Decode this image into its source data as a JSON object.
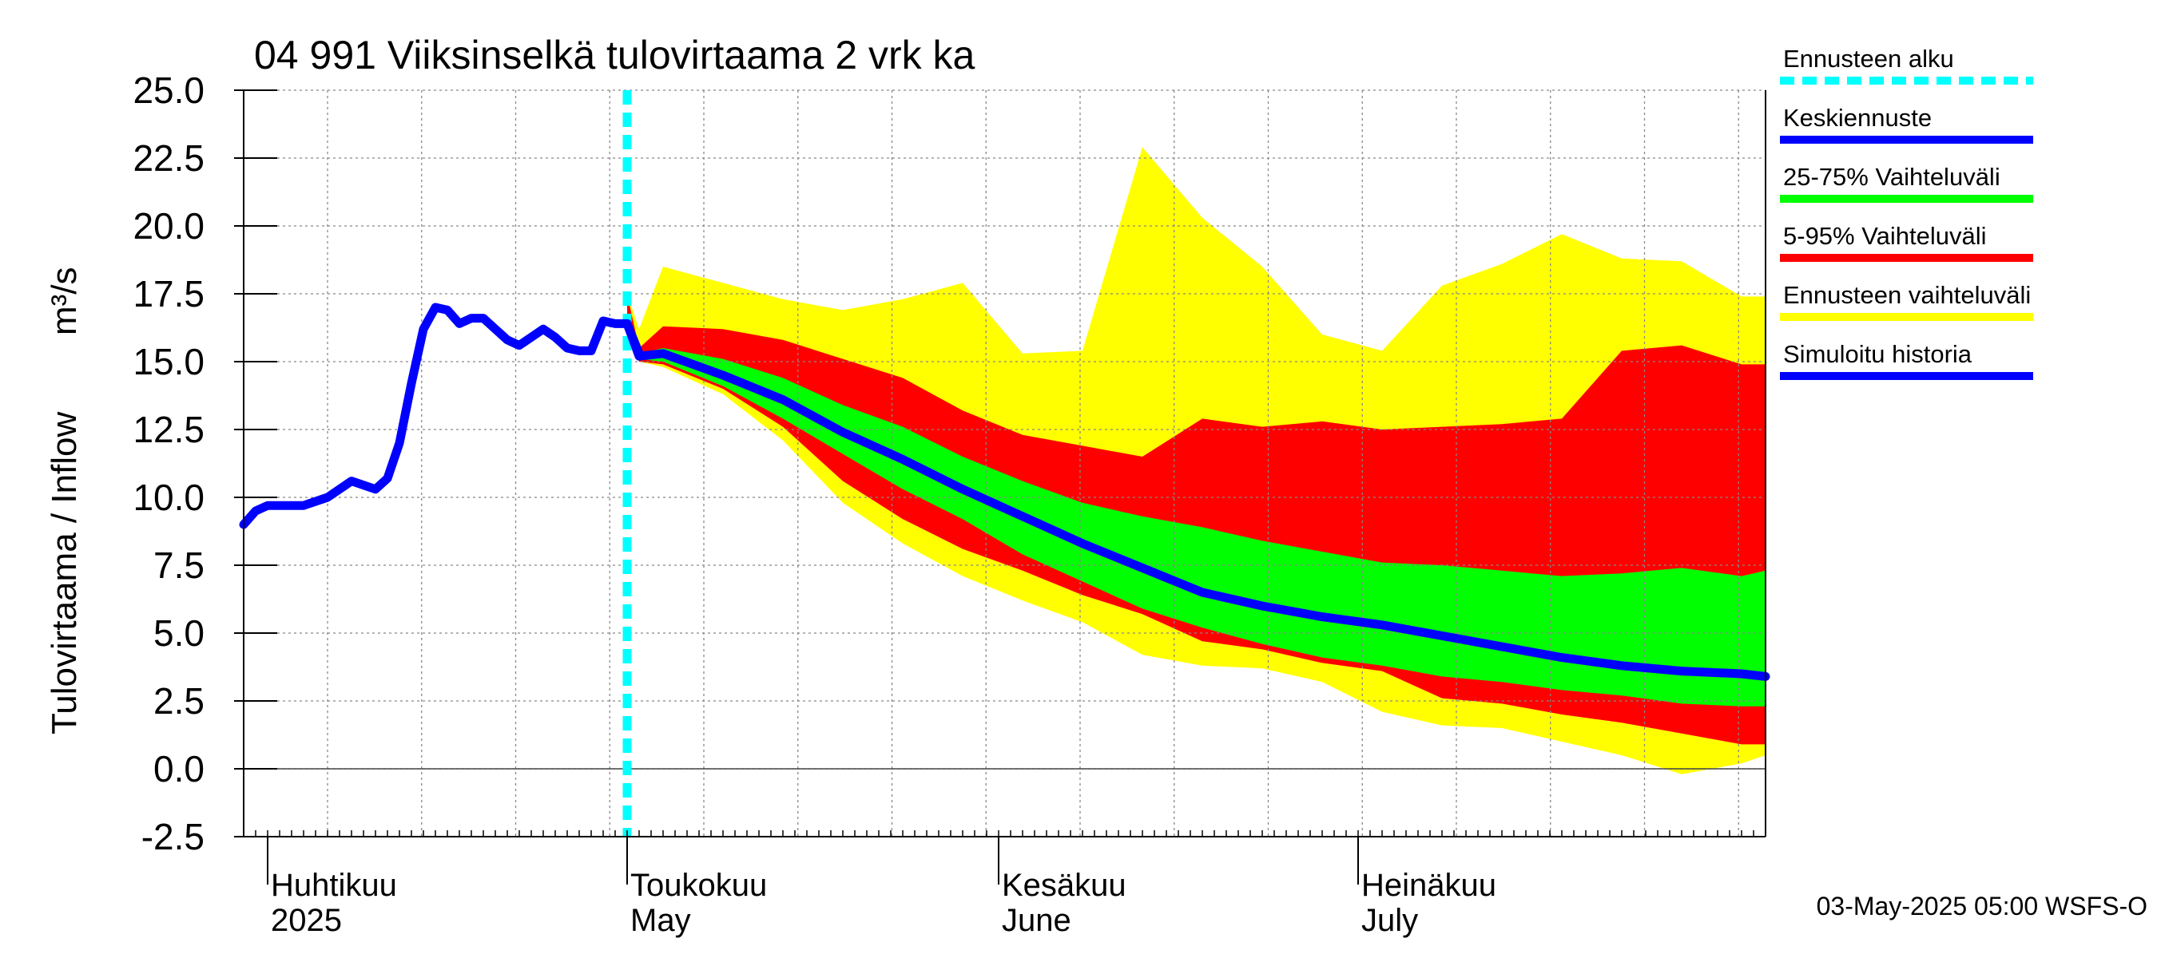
{
  "chart_data": {
    "type": "area",
    "title": "04 991 Viiksinselkä tulovirtaama 2 vrk ka",
    "ylabel_fi": "Tulovirtaama / Inflow",
    "ylabel_unit": "m³/s",
    "ylim": [
      -2.5,
      25.0
    ],
    "yticks": [
      "-2.5",
      "0.0",
      "2.5",
      "5.0",
      "7.5",
      "10.0",
      "12.5",
      "15.0",
      "17.5",
      "20.0",
      "22.5",
      "25.0"
    ],
    "x_unit": "days since 2025-03-27",
    "xlim": [
      0,
      127
    ],
    "forecast_start_day": 32,
    "months": [
      {
        "day": 2,
        "fi": "Huhtikuu",
        "en": "2025"
      },
      {
        "day": 32,
        "fi": "Toukokuu",
        "en": "May"
      },
      {
        "day": 63,
        "fi": "Kesäkuu",
        "en": "June"
      },
      {
        "day": 93,
        "fi": "Heinäkuu",
        "en": "July"
      }
    ],
    "footer": "03-May-2025 05:00 WSFS-O",
    "legend": [
      {
        "label": "Ennusteen alku",
        "color": "#00ffff",
        "dashed": true
      },
      {
        "label": "Keskiennuste",
        "color": "#0000ff",
        "dashed": false
      },
      {
        "label": "25-75% Vaihteluväli",
        "color": "#00ff00",
        "dashed": false
      },
      {
        "label": "5-95% Vaihteluväli",
        "color": "#ff0000",
        "dashed": false
      },
      {
        "label": "Ennusteen vaihteluväli",
        "color": "#ffff00",
        "dashed": false
      },
      {
        "label": "Simuloitu historia",
        "color": "#0000ff",
        "dashed": false
      }
    ],
    "history": {
      "x": [
        0,
        1,
        2,
        3,
        5,
        7,
        9,
        11,
        12,
        13,
        14,
        15,
        16,
        17,
        18,
        19,
        20,
        21,
        22,
        23,
        24,
        25,
        26,
        27,
        28,
        29,
        30,
        31,
        32,
        33
      ],
      "y": [
        9.0,
        9.5,
        9.7,
        9.7,
        9.7,
        10.0,
        10.6,
        10.3,
        10.7,
        12.0,
        14.2,
        16.2,
        17.0,
        16.9,
        16.4,
        16.6,
        16.6,
        16.2,
        15.8,
        15.6,
        15.9,
        16.2,
        15.9,
        15.5,
        15.4,
        15.4,
        16.5,
        16.4,
        16.4,
        15.3
      ]
    },
    "forecast": {
      "x": [
        32,
        33,
        35,
        40,
        45,
        50,
        55,
        60,
        65,
        70,
        75,
        80,
        85,
        90,
        95,
        100,
        105,
        110,
        115,
        120,
        125,
        127
      ],
      "mean": [
        16.4,
        15.2,
        15.3,
        14.5,
        13.6,
        12.4,
        11.4,
        10.3,
        9.3,
        8.3,
        7.4,
        6.5,
        6.0,
        5.6,
        5.3,
        4.9,
        4.5,
        4.1,
        3.8,
        3.6,
        3.5,
        3.4
      ],
      "p25": [
        16.4,
        15.1,
        15.0,
        14.1,
        12.9,
        11.6,
        10.3,
        9.2,
        7.9,
        6.9,
        5.9,
        5.2,
        4.6,
        4.1,
        3.8,
        3.4,
        3.2,
        2.9,
        2.7,
        2.4,
        2.3,
        2.3
      ],
      "p75": [
        16.4,
        15.3,
        15.5,
        15.1,
        14.4,
        13.4,
        12.6,
        11.5,
        10.6,
        9.8,
        9.3,
        8.9,
        8.4,
        8.0,
        7.6,
        7.5,
        7.3,
        7.1,
        7.2,
        7.4,
        7.1,
        7.3
      ],
      "p5": [
        16.4,
        15.0,
        14.9,
        14.0,
        12.6,
        10.6,
        9.2,
        8.1,
        7.3,
        6.4,
        5.7,
        4.7,
        4.4,
        3.9,
        3.6,
        2.6,
        2.4,
        2.0,
        1.7,
        1.3,
        0.9,
        0.9
      ],
      "p95": [
        17.5,
        15.5,
        16.3,
        16.2,
        15.8,
        15.1,
        14.4,
        13.2,
        12.3,
        11.9,
        11.5,
        12.9,
        12.6,
        12.8,
        12.5,
        12.6,
        12.7,
        12.9,
        15.4,
        15.6,
        14.9,
        14.9
      ],
      "min": [
        16.4,
        15.0,
        14.8,
        13.8,
        12.1,
        9.8,
        8.3,
        7.1,
        6.2,
        5.4,
        4.2,
        3.8,
        3.7,
        3.2,
        2.1,
        1.6,
        1.5,
        1.0,
        0.5,
        -0.2,
        0.2,
        0.5
      ],
      "max": [
        17.5,
        16.2,
        18.5,
        17.9,
        17.3,
        16.9,
        17.3,
        17.9,
        15.3,
        15.4,
        22.9,
        20.3,
        18.5,
        16.0,
        15.4,
        17.8,
        18.6,
        19.7,
        18.8,
        18.7,
        17.4,
        17.4
      ]
    }
  }
}
